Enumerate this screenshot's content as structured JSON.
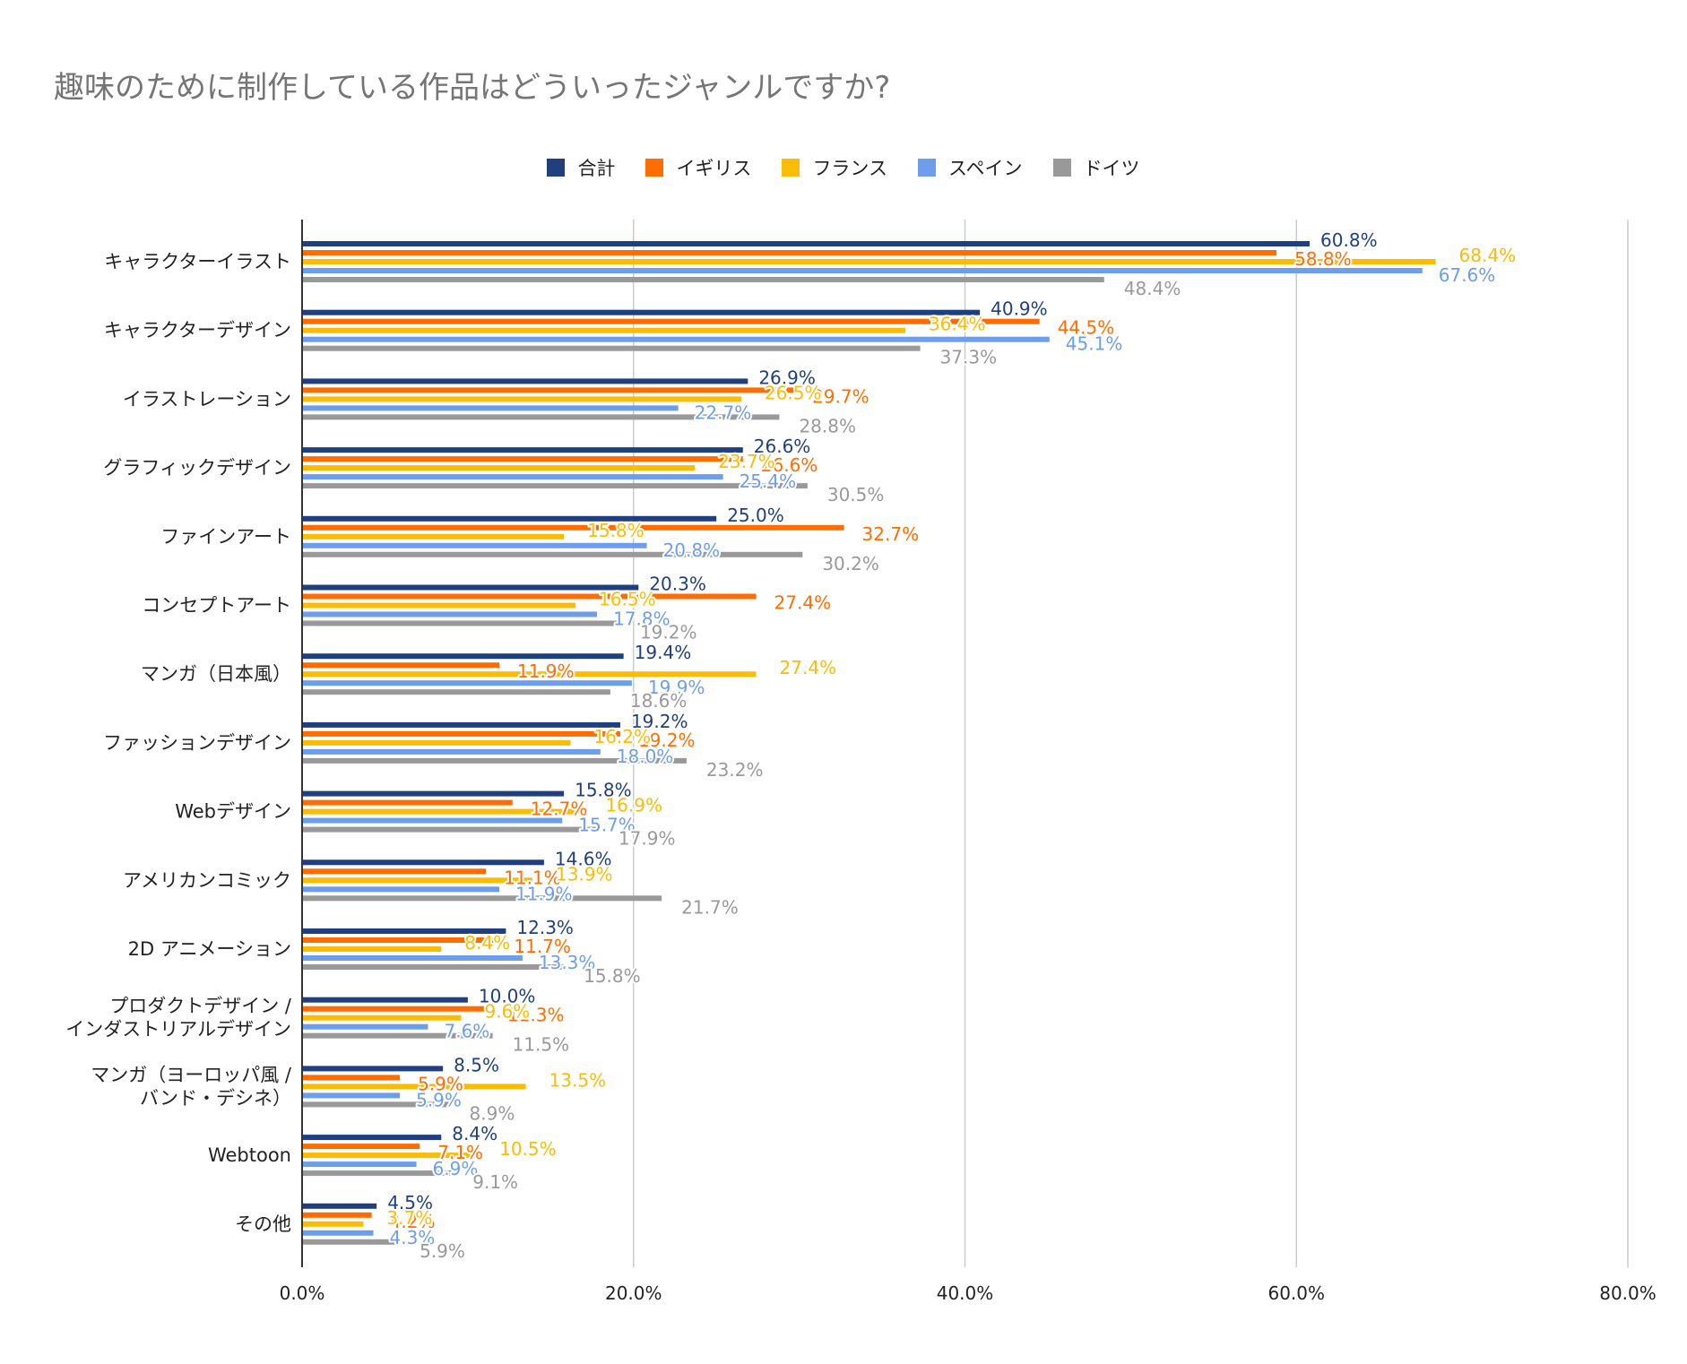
{
  "chart_data": {
    "type": "bar",
    "orientation": "horizontal",
    "title": "趣味のために制作している作品はどういったジャンルですか?",
    "xlabel": "",
    "ylabel": "",
    "xlim": [
      0,
      80
    ],
    "x_ticks": [
      "0.0%",
      "20.0%",
      "40.0%",
      "60.0%",
      "80.0%"
    ],
    "x_tick_values": [
      0,
      20,
      40,
      60,
      80
    ],
    "grid": true,
    "legend_position": "top-center",
    "categories": [
      [
        "キャラクターイラスト"
      ],
      [
        "キャラクターデザイン"
      ],
      [
        "イラストレーション"
      ],
      [
        "グラフィックデザイン"
      ],
      [
        "ファインアート"
      ],
      [
        "コンセプトアート"
      ],
      [
        "マンガ（日本風）"
      ],
      [
        "ファッションデザイン"
      ],
      [
        "Webデザイン"
      ],
      [
        "アメリカンコミック"
      ],
      [
        "2D アニメーション"
      ],
      [
        "プロダクトデザイン /",
        "インダストリアルデザイン"
      ],
      [
        "マンガ（ヨーロッパ風 /",
        "バンド・デシネ）"
      ],
      [
        "Webtoon"
      ],
      [
        "その他"
      ]
    ],
    "series": [
      {
        "name": "合計",
        "color": "#1f3f7f",
        "values": [
          60.8,
          40.9,
          26.9,
          26.6,
          25.0,
          20.3,
          19.4,
          19.2,
          15.8,
          14.6,
          12.3,
          10.0,
          8.5,
          8.4,
          4.5
        ],
        "labels": [
          "60.8%",
          "40.9%",
          "26.9%",
          "26.6%",
          "25.0%",
          "20.3%",
          "19.4%",
          "19.2%",
          "15.8%",
          "14.6%",
          "12.3%",
          "10.0%",
          "8.5%",
          "8.4%",
          "4.5%"
        ]
      },
      {
        "name": "イギリス",
        "color": "#ff6d01",
        "values": [
          58.8,
          44.5,
          29.7,
          26.6,
          32.7,
          27.4,
          11.9,
          19.2,
          12.7,
          11.1,
          11.7,
          11.3,
          5.9,
          7.1,
          4.2
        ],
        "labels": [
          "58.8%",
          "44.5%",
          "29.7%",
          "26.6%",
          "32.7%",
          "27.4%",
          "11.9%",
          "19.2%",
          "12.7%",
          "11.1%",
          "11.7%",
          "11.3%",
          "5.9%",
          "7.1%",
          "4.2%"
        ]
      },
      {
        "name": "フランス",
        "color": "#fbbc04",
        "values": [
          68.4,
          36.4,
          26.5,
          23.7,
          15.8,
          16.5,
          27.4,
          16.2,
          16.9,
          13.9,
          8.4,
          9.6,
          13.5,
          10.5,
          3.7
        ],
        "labels": [
          "68.4%",
          "36.4%",
          "26.5%",
          "23.7%",
          "15.8%",
          "16.5%",
          "27.4%",
          "16.2%",
          "16.9%",
          "13.9%",
          "8.4%",
          "9.6%",
          "13.5%",
          "10.5%",
          "3.7%"
        ]
      },
      {
        "name": "スペイン",
        "color": "#6d9eeb",
        "values": [
          67.6,
          45.1,
          22.7,
          25.4,
          20.8,
          17.8,
          19.9,
          18.0,
          15.7,
          11.9,
          13.3,
          7.6,
          5.9,
          6.9,
          4.3
        ],
        "labels": [
          "67.6%",
          "45.1%",
          "22.7%",
          "25.4%",
          "20.8%",
          "17.8%",
          "19.9%",
          "18.0%",
          "15.7%",
          "11.9%",
          "13.3%",
          "7.6%",
          "5.9%",
          "6.9%",
          "4.3%"
        ]
      },
      {
        "name": "ドイツ",
        "color": "#999999",
        "values": [
          48.4,
          37.3,
          28.8,
          30.5,
          30.2,
          19.2,
          18.6,
          23.2,
          17.9,
          21.7,
          15.8,
          11.5,
          8.9,
          9.1,
          5.9
        ],
        "labels": [
          "48.4%",
          "37.3%",
          "28.8%",
          "30.5%",
          "30.2%",
          "19.2%",
          "18.6%",
          "23.2%",
          "17.9%",
          "21.7%",
          "15.8%",
          "11.5%",
          "8.9%",
          "9.1%",
          "5.9%"
        ]
      }
    ]
  }
}
